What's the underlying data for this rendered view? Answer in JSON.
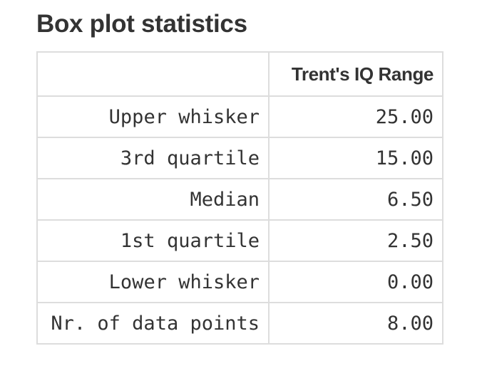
{
  "title": "Box plot statistics",
  "chart_data": {
    "type": "table",
    "columns": [
      "",
      "Trent's IQ Range"
    ],
    "rows": [
      {
        "label": "Upper whisker",
        "value": "25.00"
      },
      {
        "label": "3rd quartile",
        "value": "15.00"
      },
      {
        "label": "Median",
        "value": "6.50"
      },
      {
        "label": "1st quartile",
        "value": "2.50"
      },
      {
        "label": "Lower whisker",
        "value": "0.00"
      },
      {
        "label": "Nr. of data points",
        "value": "8.00"
      }
    ]
  }
}
